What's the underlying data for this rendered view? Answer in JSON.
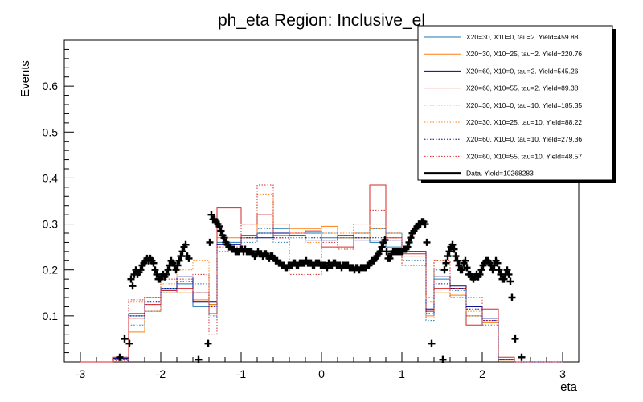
{
  "chart_data": {
    "type": "histogram",
    "title": "ph_eta Region: Inclusive_el",
    "xlabel": "eta",
    "ylabel": "Events",
    "xlim": [
      -3.2,
      3.2
    ],
    "ylim": [
      0,
      0.7
    ],
    "xticks": [
      -3,
      -2,
      -1,
      0,
      1,
      2,
      3
    ],
    "yticks": [
      0.1,
      0.2,
      0.3,
      0.4,
      0.5,
      0.6
    ],
    "bin_edges": [
      -3.0,
      -2.8,
      -2.6,
      -2.4,
      -2.2,
      -2.0,
      -1.8,
      -1.6,
      -1.4,
      -1.3,
      -1.0,
      -0.8,
      -0.6,
      -0.4,
      -0.2,
      0.0,
      0.2,
      0.4,
      0.6,
      0.8,
      1.0,
      1.3,
      1.4,
      1.6,
      1.8,
      2.0,
      2.2,
      2.4,
      2.6,
      2.8,
      3.0
    ],
    "series": [
      {
        "name": "X20=30, X10=0, tau=2. Yield=459.88",
        "color": "#1f77b4",
        "style": "solid",
        "values": [
          0,
          0,
          0.008,
          0.1,
          0.14,
          0.16,
          0.17,
          0.12,
          0.125,
          0.26,
          0.27,
          0.28,
          0.29,
          0.28,
          0.28,
          0.27,
          0.27,
          0.27,
          0.26,
          0.25,
          0.24,
          0.11,
          0.18,
          0.16,
          0.12,
          0.095,
          0.005,
          0,
          0,
          0
        ]
      },
      {
        "name": "X20=30, X10=25, tau=2. Yield=220.76",
        "color": "#ff7f0e",
        "style": "solid",
        "values": [
          0,
          0,
          0.005,
          0.065,
          0.11,
          0.15,
          0.15,
          0.135,
          0.125,
          0.27,
          0.27,
          0.3,
          0.3,
          0.29,
          0.29,
          0.295,
          0.27,
          0.27,
          0.29,
          0.28,
          0.23,
          0.1,
          0.15,
          0.145,
          0.1,
          0.085,
          0.004,
          0,
          0,
          0
        ]
      },
      {
        "name": "X20=60, X10=0, tau=2. Yield=545.26",
        "color": "#00008b",
        "style": "solid",
        "values": [
          0,
          0,
          0.008,
          0.105,
          0.14,
          0.155,
          0.185,
          0.13,
          0.13,
          0.255,
          0.275,
          0.27,
          0.28,
          0.275,
          0.265,
          0.265,
          0.275,
          0.265,
          0.265,
          0.265,
          0.24,
          0.115,
          0.185,
          0.165,
          0.12,
          0.095,
          0.005,
          0,
          0,
          0
        ]
      },
      {
        "name": "X20=60, X10=55, tau=2. Yield=89.38",
        "color": "#d62728",
        "style": "solid",
        "values": [
          0,
          0,
          0.01,
          0.095,
          0.125,
          0.155,
          0.16,
          0.15,
          0.105,
          0.335,
          0.3,
          0.32,
          0.275,
          0.28,
          0.285,
          0.25,
          0.25,
          0.28,
          0.385,
          0.27,
          0.235,
          0.11,
          0.16,
          0.16,
          0.08,
          0.115,
          0.01,
          0,
          0,
          0
        ]
      },
      {
        "name": "X20=30, X10=0, tau=10. Yield=185.35",
        "color": "#1f77b4",
        "style": "dotted",
        "values": [
          0,
          0,
          0.005,
          0.08,
          0.11,
          0.15,
          0.175,
          0.17,
          0.1,
          0.24,
          0.26,
          0.29,
          0.26,
          0.27,
          0.28,
          0.28,
          0.27,
          0.28,
          0.29,
          0.28,
          0.22,
          0.09,
          0.2,
          0.155,
          0.1,
          0.08,
          0.005,
          0,
          0,
          0
        ]
      },
      {
        "name": "X20=30, X10=25, tau=10. Yield=88.22",
        "color": "#ff7f0e",
        "style": "dotted",
        "values": [
          0,
          0,
          0.005,
          0.13,
          0.14,
          0.17,
          0.2,
          0.22,
          0.12,
          0.25,
          0.27,
          0.365,
          0.3,
          0.28,
          0.26,
          0.28,
          0.28,
          0.28,
          0.3,
          0.27,
          0.21,
          0.13,
          0.22,
          0.14,
          0.11,
          0.09,
          0.005,
          0,
          0,
          0
        ]
      },
      {
        "name": "X20=60, X10=0, tau=10. Yield=279.36",
        "color": "#00008b",
        "style": "dotted",
        "values": [
          0,
          0,
          0.005,
          0.1,
          0.13,
          0.16,
          0.175,
          0.15,
          0.12,
          0.255,
          0.27,
          0.28,
          0.27,
          0.275,
          0.27,
          0.265,
          0.275,
          0.27,
          0.27,
          0.265,
          0.24,
          0.105,
          0.17,
          0.16,
          0.115,
          0.09,
          0.005,
          0,
          0,
          0
        ]
      },
      {
        "name": "X20=60, X10=55, tau=10. Yield=48.57",
        "color": "#d62728",
        "style": "dotted",
        "values": [
          0,
          0,
          0.003,
          0.135,
          0.125,
          0.18,
          0.18,
          0.19,
          0.06,
          0.25,
          0.3,
          0.385,
          0.27,
          0.19,
          0.19,
          0.26,
          0.245,
          0.3,
          0.33,
          0.27,
          0.21,
          0.14,
          0.22,
          0.14,
          0.14,
          0.09,
          0.005,
          0,
          0,
          0
        ]
      }
    ],
    "data_series": {
      "name": "Data. Yield=10268283",
      "color": "#000000",
      "points": [
        [
          -2.51,
          0.01
        ],
        [
          -2.45,
          0.05
        ],
        [
          -2.39,
          0.04
        ],
        [
          -2.37,
          0.18
        ],
        [
          -2.35,
          0.165
        ],
        [
          -2.33,
          0.19
        ],
        [
          -2.31,
          0.2
        ],
        [
          -2.29,
          0.19
        ],
        [
          -2.27,
          0.195
        ],
        [
          -2.25,
          0.2
        ],
        [
          -2.23,
          0.21
        ],
        [
          -2.21,
          0.215
        ],
        [
          -2.19,
          0.22
        ],
        [
          -2.17,
          0.225
        ],
        [
          -2.15,
          0.22
        ],
        [
          -2.13,
          0.225
        ],
        [
          -2.11,
          0.22
        ],
        [
          -2.09,
          0.215
        ],
        [
          -2.07,
          0.2
        ],
        [
          -2.05,
          0.19
        ],
        [
          -2.03,
          0.18
        ],
        [
          -2.01,
          0.18
        ],
        [
          -1.99,
          0.185
        ],
        [
          -1.97,
          0.19
        ],
        [
          -1.95,
          0.185
        ],
        [
          -1.93,
          0.19
        ],
        [
          -1.91,
          0.2
        ],
        [
          -1.89,
          0.21
        ],
        [
          -1.87,
          0.22
        ],
        [
          -1.85,
          0.215
        ],
        [
          -1.83,
          0.21
        ],
        [
          -1.81,
          0.2
        ],
        [
          -1.79,
          0.21
        ],
        [
          -1.77,
          0.22
        ],
        [
          -1.75,
          0.23
        ],
        [
          -1.73,
          0.24
        ],
        [
          -1.71,
          0.25
        ],
        [
          -1.69,
          0.255
        ],
        [
          -1.67,
          0.23
        ],
        [
          -1.65,
          0.225
        ],
        [
          -1.53,
          0.005
        ],
        [
          -1.41,
          0.04
        ],
        [
          -1.39,
          0.26
        ],
        [
          -1.37,
          0.32
        ],
        [
          -1.35,
          0.31
        ],
        [
          -1.33,
          0.31
        ],
        [
          -1.31,
          0.305
        ],
        [
          -1.29,
          0.3
        ],
        [
          -1.27,
          0.295
        ],
        [
          -1.25,
          0.285
        ],
        [
          -1.23,
          0.275
        ],
        [
          -1.21,
          0.27
        ],
        [
          -1.19,
          0.26
        ],
        [
          -1.17,
          0.255
        ],
        [
          -1.15,
          0.25
        ],
        [
          -1.13,
          0.25
        ],
        [
          -1.11,
          0.245
        ],
        [
          -1.09,
          0.245
        ],
        [
          -1.07,
          0.24
        ],
        [
          -1.05,
          0.24
        ],
        [
          -1.03,
          0.24
        ],
        [
          -1.01,
          0.245
        ],
        [
          -0.99,
          0.245
        ],
        [
          -0.97,
          0.24
        ],
        [
          -0.95,
          0.245
        ],
        [
          -0.93,
          0.24
        ],
        [
          -0.91,
          0.24
        ],
        [
          -0.89,
          0.24
        ],
        [
          -0.87,
          0.24
        ],
        [
          -0.85,
          0.235
        ],
        [
          -0.83,
          0.23
        ],
        [
          -0.81,
          0.235
        ],
        [
          -0.79,
          0.24
        ],
        [
          -0.77,
          0.235
        ],
        [
          -0.75,
          0.235
        ],
        [
          -0.73,
          0.23
        ],
        [
          -0.71,
          0.235
        ],
        [
          -0.69,
          0.235
        ],
        [
          -0.67,
          0.23
        ],
        [
          -0.65,
          0.225
        ],
        [
          -0.63,
          0.23
        ],
        [
          -0.61,
          0.23
        ],
        [
          -0.59,
          0.225
        ],
        [
          -0.57,
          0.22
        ],
        [
          -0.55,
          0.22
        ],
        [
          -0.53,
          0.215
        ],
        [
          -0.51,
          0.215
        ],
        [
          -0.49,
          0.21
        ],
        [
          -0.47,
          0.21
        ],
        [
          -0.45,
          0.205
        ],
        [
          -0.43,
          0.205
        ],
        [
          -0.41,
          0.21
        ],
        [
          -0.39,
          0.21
        ],
        [
          -0.37,
          0.21
        ],
        [
          -0.35,
          0.215
        ],
        [
          -0.33,
          0.215
        ],
        [
          -0.31,
          0.21
        ],
        [
          -0.29,
          0.21
        ],
        [
          -0.27,
          0.215
        ],
        [
          -0.25,
          0.215
        ],
        [
          -0.23,
          0.215
        ],
        [
          -0.21,
          0.215
        ],
        [
          -0.19,
          0.22
        ],
        [
          -0.17,
          0.215
        ],
        [
          -0.15,
          0.215
        ],
        [
          -0.13,
          0.215
        ],
        [
          -0.11,
          0.21
        ],
        [
          -0.09,
          0.21
        ],
        [
          -0.07,
          0.215
        ],
        [
          -0.05,
          0.215
        ],
        [
          -0.03,
          0.215
        ],
        [
          -0.01,
          0.21
        ],
        [
          0.01,
          0.21
        ],
        [
          0.03,
          0.21
        ],
        [
          0.05,
          0.21
        ],
        [
          0.07,
          0.205
        ],
        [
          0.09,
          0.215
        ],
        [
          0.11,
          0.21
        ],
        [
          0.13,
          0.21
        ],
        [
          0.15,
          0.215
        ],
        [
          0.17,
          0.215
        ],
        [
          0.19,
          0.21
        ],
        [
          0.21,
          0.21
        ],
        [
          0.23,
          0.21
        ],
        [
          0.25,
          0.205
        ],
        [
          0.27,
          0.21
        ],
        [
          0.29,
          0.21
        ],
        [
          0.31,
          0.21
        ],
        [
          0.33,
          0.21
        ],
        [
          0.35,
          0.205
        ],
        [
          0.37,
          0.205
        ],
        [
          0.39,
          0.205
        ],
        [
          0.41,
          0.2
        ],
        [
          0.43,
          0.205
        ],
        [
          0.45,
          0.205
        ],
        [
          0.47,
          0.2
        ],
        [
          0.49,
          0.205
        ],
        [
          0.51,
          0.205
        ],
        [
          0.53,
          0.205
        ],
        [
          0.55,
          0.205
        ],
        [
          0.57,
          0.21
        ],
        [
          0.59,
          0.21
        ],
        [
          0.61,
          0.215
        ],
        [
          0.63,
          0.22
        ],
        [
          0.65,
          0.22
        ],
        [
          0.67,
          0.225
        ],
        [
          0.69,
          0.23
        ],
        [
          0.71,
          0.235
        ],
        [
          0.73,
          0.24
        ],
        [
          0.75,
          0.25
        ],
        [
          0.77,
          0.26
        ],
        [
          0.79,
          0.265
        ],
        [
          0.81,
          0.24
        ],
        [
          0.83,
          0.225
        ],
        [
          0.85,
          0.225
        ],
        [
          0.87,
          0.235
        ],
        [
          0.89,
          0.24
        ],
        [
          0.91,
          0.24
        ],
        [
          0.93,
          0.24
        ],
        [
          0.95,
          0.24
        ],
        [
          0.97,
          0.24
        ],
        [
          0.99,
          0.24
        ],
        [
          1.01,
          0.24
        ],
        [
          1.03,
          0.245
        ],
        [
          1.05,
          0.245
        ],
        [
          1.07,
          0.25
        ],
        [
          1.09,
          0.26
        ],
        [
          1.11,
          0.27
        ],
        [
          1.13,
          0.28
        ],
        [
          1.15,
          0.285
        ],
        [
          1.17,
          0.29
        ],
        [
          1.19,
          0.295
        ],
        [
          1.21,
          0.3
        ],
        [
          1.23,
          0.3
        ],
        [
          1.25,
          0.305
        ],
        [
          1.27,
          0.305
        ],
        [
          1.29,
          0.3
        ],
        [
          1.31,
          0.26
        ],
        [
          1.37,
          0.04
        ],
        [
          1.51,
          0.005
        ],
        [
          1.53,
          0.2
        ],
        [
          1.55,
          0.215
        ],
        [
          1.57,
          0.23
        ],
        [
          1.59,
          0.24
        ],
        [
          1.61,
          0.25
        ],
        [
          1.63,
          0.255
        ],
        [
          1.65,
          0.245
        ],
        [
          1.67,
          0.23
        ],
        [
          1.69,
          0.22
        ],
        [
          1.71,
          0.21
        ],
        [
          1.73,
          0.2
        ],
        [
          1.75,
          0.2
        ],
        [
          1.77,
          0.215
        ],
        [
          1.79,
          0.22
        ],
        [
          1.81,
          0.205
        ],
        [
          1.83,
          0.19
        ],
        [
          1.85,
          0.19
        ],
        [
          1.87,
          0.185
        ],
        [
          1.89,
          0.18
        ],
        [
          1.91,
          0.185
        ],
        [
          1.93,
          0.19
        ],
        [
          1.95,
          0.185
        ],
        [
          1.97,
          0.19
        ],
        [
          1.99,
          0.2
        ],
        [
          2.01,
          0.21
        ],
        [
          2.03,
          0.215
        ],
        [
          2.05,
          0.22
        ],
        [
          2.07,
          0.22
        ],
        [
          2.09,
          0.215
        ],
        [
          2.11,
          0.21
        ],
        [
          2.13,
          0.2
        ],
        [
          2.15,
          0.21
        ],
        [
          2.17,
          0.22
        ],
        [
          2.19,
          0.215
        ],
        [
          2.21,
          0.2
        ],
        [
          2.23,
          0.19
        ],
        [
          2.25,
          0.18
        ],
        [
          2.27,
          0.18
        ],
        [
          2.29,
          0.19
        ],
        [
          2.31,
          0.2
        ],
        [
          2.33,
          0.19
        ],
        [
          2.35,
          0.175
        ],
        [
          2.37,
          0.14
        ],
        [
          2.41,
          0.05
        ],
        [
          2.49,
          0.01
        ]
      ]
    },
    "legend_position": "top-right"
  }
}
